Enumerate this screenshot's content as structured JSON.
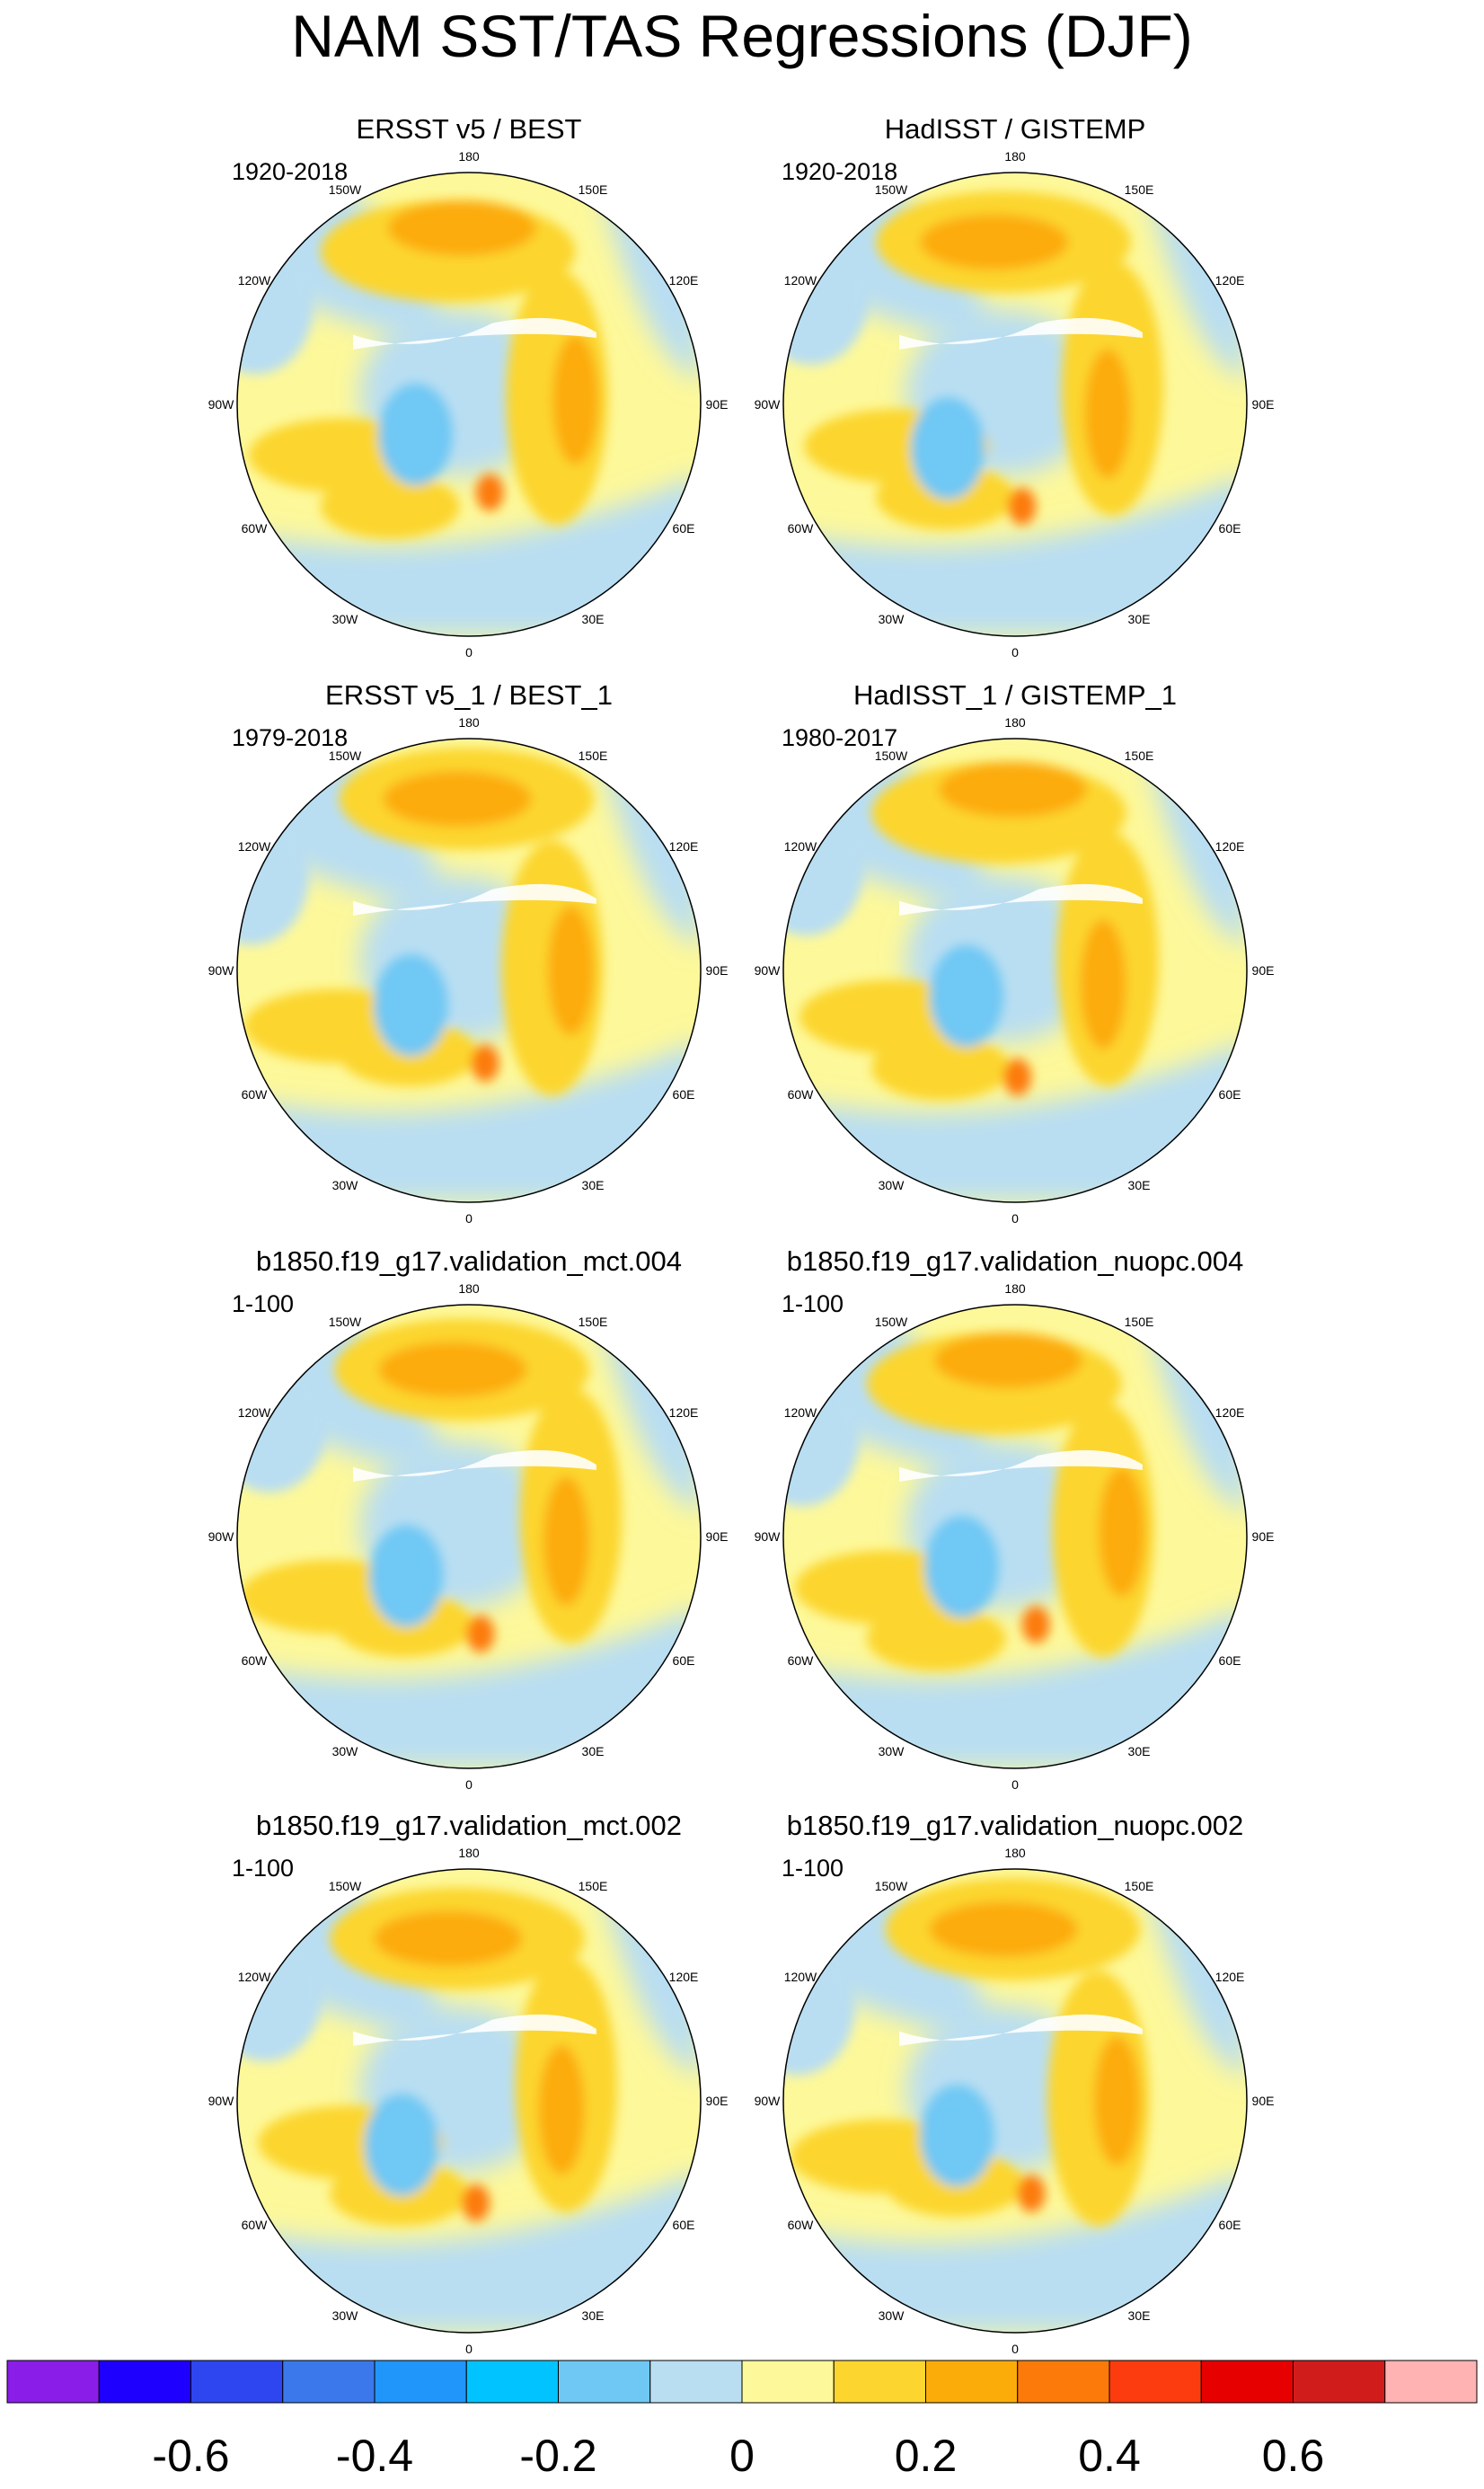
{
  "title": "NAM SST/TAS Regressions (DJF)",
  "panels": [
    {
      "title": "ERSST v5 / BEST",
      "period": "1920-2018"
    },
    {
      "title": "HadISST / GISTEMP",
      "period": "1920-2018"
    },
    {
      "title": "ERSST v5_1 / BEST_1",
      "period": "1979-2018"
    },
    {
      "title": "HadISST_1 / GISTEMP_1",
      "period": "1980-2017"
    },
    {
      "title": "b1850.f19_g17.validation_mct.004",
      "period": "1-100"
    },
    {
      "title": "b1850.f19_g17.validation_nuopc.004",
      "period": "1-100"
    },
    {
      "title": "b1850.f19_g17.validation_mct.002",
      "period": "1-100"
    },
    {
      "title": "b1850.f19_g17.validation_nuopc.002",
      "period": "1-100"
    }
  ],
  "longitude_labels": [
    "180",
    "150E",
    "120E",
    "90E",
    "60E",
    "30E",
    "0",
    "30W",
    "60W",
    "90W",
    "120W",
    "150W"
  ],
  "colorbar": {
    "colors": [
      "#8a1ee8",
      "#1e00ff",
      "#2e46f0",
      "#3a78ec",
      "#2096fa",
      "#00c3ff",
      "#6fc8f4",
      "#b9def2",
      "#fdf89a",
      "#fcd62e",
      "#fcac09",
      "#fc7a0a",
      "#fc3c0e",
      "#e60000",
      "#d11c1c",
      "#ffb3b3"
    ],
    "tick_labels": [
      "-0.6",
      "-0.4",
      "-0.2",
      "0",
      "0.2",
      "0.4",
      "0.6"
    ]
  }
}
